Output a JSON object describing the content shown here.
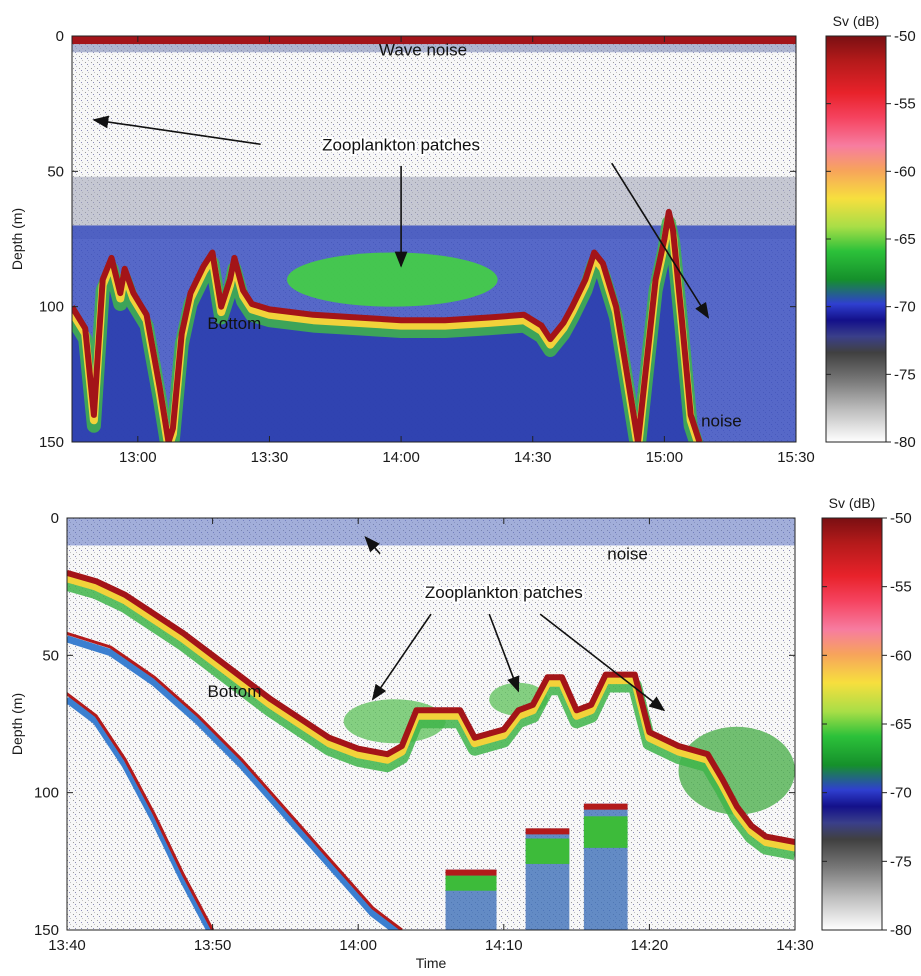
{
  "chart_data": [
    {
      "type": "heatmap",
      "title": "",
      "xlabel": "",
      "ylabel": "Depth (m)",
      "x_ticks": [
        "13:00",
        "13:30",
        "14:00",
        "14:30",
        "15:00",
        "15:30"
      ],
      "x_tick_minutes": [
        0,
        30,
        60,
        90,
        120,
        150
      ],
      "x_range_minutes": [
        -15,
        150
      ],
      "y_ticks": [
        "0",
        "50",
        "100",
        "150"
      ],
      "y_tick_values": [
        0,
        50,
        100,
        150
      ],
      "ylim": [
        0,
        150
      ],
      "y_inverted": true,
      "colorbar": {
        "label": "Sv (dB)",
        "ticks": [
          "-50",
          "-55",
          "-60",
          "-65",
          "-70",
          "-75",
          "-80"
        ],
        "range": [
          -80,
          -50
        ]
      },
      "annotations": [
        {
          "text": "Wave noise",
          "t": 65,
          "d": 5
        },
        {
          "text": "Zooplankton patches",
          "t": 60,
          "d": 40
        },
        {
          "text": "Bottom",
          "t": 22,
          "d": 106
        },
        {
          "text": "noise",
          "t": 133,
          "d": 142
        }
      ],
      "arrows": [
        {
          "from": [
            28,
            40
          ],
          "to": [
            -10,
            31
          ]
        },
        {
          "from": [
            60,
            48
          ],
          "to": [
            60,
            85
          ]
        },
        {
          "from": [
            108,
            47
          ],
          "to": [
            130,
            104
          ]
        }
      ],
      "bottom_depth": [
        [
          -15,
          100
        ],
        [
          -12,
          108
        ],
        [
          -10,
          140
        ],
        [
          -9,
          115
        ],
        [
          -8,
          90
        ],
        [
          -6,
          82
        ],
        [
          -4,
          95
        ],
        [
          -3,
          86
        ],
        [
          -1,
          95
        ],
        [
          2,
          103
        ],
        [
          5,
          130
        ],
        [
          7,
          150
        ],
        [
          8,
          145
        ],
        [
          10,
          110
        ],
        [
          12,
          95
        ],
        [
          15,
          85
        ],
        [
          17,
          80
        ],
        [
          19,
          100
        ],
        [
          21,
          90
        ],
        [
          22,
          82
        ],
        [
          24,
          94
        ],
        [
          26,
          99
        ],
        [
          30,
          101
        ],
        [
          40,
          103
        ],
        [
          50,
          104
        ],
        [
          60,
          105
        ],
        [
          70,
          105
        ],
        [
          80,
          104
        ],
        [
          88,
          103
        ],
        [
          92,
          107
        ],
        [
          94,
          112
        ],
        [
          97,
          106
        ],
        [
          99,
          100
        ],
        [
          102,
          90
        ],
        [
          104,
          80
        ],
        [
          106,
          84
        ],
        [
          109,
          100
        ],
        [
          112,
          130
        ],
        [
          114,
          150
        ],
        [
          116,
          120
        ],
        [
          118,
          90
        ],
        [
          120,
          75
        ],
        [
          121,
          65
        ],
        [
          122,
          72
        ],
        [
          124,
          105
        ],
        [
          126,
          140
        ],
        [
          128,
          150
        ]
      ]
    },
    {
      "type": "heatmap",
      "title": "",
      "xlabel": "Time",
      "ylabel": "Depth (m)",
      "x_ticks": [
        "13:40",
        "13:50",
        "14:00",
        "14:10",
        "14:20",
        "14:30"
      ],
      "x_tick_minutes": [
        0,
        10,
        20,
        30,
        40,
        50
      ],
      "x_range_minutes": [
        0,
        50
      ],
      "y_ticks": [
        "0",
        "50",
        "100",
        "150"
      ],
      "y_tick_values": [
        0,
        50,
        100,
        150
      ],
      "ylim": [
        0,
        150
      ],
      "y_inverted": true,
      "colorbar": {
        "label": "Sv (dB)",
        "ticks": [
          "-50",
          "-55",
          "-60",
          "-65",
          "-70",
          "-75",
          "-80"
        ],
        "range": [
          -80,
          -50
        ]
      },
      "annotations": [
        {
          "text": "noise",
          "t": 38.5,
          "d": 13
        },
        {
          "text": "Zooplankton patches",
          "t": 30,
          "d": 27
        },
        {
          "text": "Bottom",
          "t": 11.5,
          "d": 63
        }
      ],
      "arrows": [
        {
          "from": [
            21.5,
            13
          ],
          "to": [
            20.5,
            7
          ]
        },
        {
          "from": [
            25,
            35
          ],
          "to": [
            21,
            66
          ]
        },
        {
          "from": [
            29,
            35
          ],
          "to": [
            31,
            63
          ]
        },
        {
          "from": [
            32.5,
            35
          ],
          "to": [
            41,
            70
          ]
        }
      ],
      "bottom_depth": [
        [
          0,
          20
        ],
        [
          2,
          23
        ],
        [
          4,
          28
        ],
        [
          6,
          35
        ],
        [
          8,
          42
        ],
        [
          10,
          50
        ],
        [
          12,
          58
        ],
        [
          14,
          66
        ],
        [
          16,
          73
        ],
        [
          18,
          80
        ],
        [
          20,
          84
        ],
        [
          22,
          86
        ],
        [
          23,
          83
        ],
        [
          24,
          70
        ],
        [
          26,
          70
        ],
        [
          27,
          70
        ],
        [
          28,
          80
        ],
        [
          30,
          77
        ],
        [
          31,
          70
        ],
        [
          32,
          68
        ],
        [
          33,
          58
        ],
        [
          34,
          58
        ],
        [
          35,
          70
        ],
        [
          36,
          68
        ],
        [
          37,
          57
        ],
        [
          39,
          57
        ],
        [
          40,
          78
        ],
        [
          42,
          83
        ],
        [
          44,
          86
        ],
        [
          45,
          95
        ],
        [
          46,
          105
        ],
        [
          47,
          112
        ],
        [
          48,
          116
        ],
        [
          50,
          118
        ]
      ],
      "second_echo": [
        [
          0,
          42
        ],
        [
          3,
          47
        ],
        [
          6,
          58
        ],
        [
          9,
          72
        ],
        [
          12,
          88
        ],
        [
          15,
          106
        ],
        [
          18,
          124
        ],
        [
          21,
          142
        ],
        [
          23,
          150
        ]
      ],
      "third_echo": [
        [
          0,
          64
        ],
        [
          2,
          72
        ],
        [
          4,
          88
        ],
        [
          6,
          108
        ],
        [
          8,
          130
        ],
        [
          10,
          150
        ]
      ],
      "deep_echo_blocks": [
        {
          "t0": 26,
          "t1": 29.5,
          "d0": 128,
          "d1": 150
        },
        {
          "t0": 31.5,
          "t1": 34.5,
          "d0": 113,
          "d1": 150
        },
        {
          "t0": 35.5,
          "t1": 38.5,
          "d0": 104,
          "d1": 150
        }
      ]
    }
  ]
}
